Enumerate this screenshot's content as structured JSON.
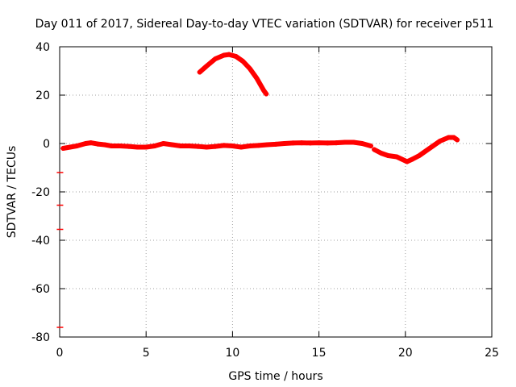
{
  "chart_data": {
    "type": "scatter",
    "title": "Day 011 of 2017, Sidereal Day-to-day VTEC variation (SDTVAR) for receiver p511",
    "xlabel": "GPS time / hours",
    "ylabel": "SDTVAR / TECUs",
    "xlim": [
      0,
      25
    ],
    "ylim": [
      -80,
      40
    ],
    "x_ticks": [
      0,
      5,
      10,
      15,
      20,
      25
    ],
    "y_ticks": [
      -80,
      -60,
      -40,
      -20,
      0,
      20,
      40
    ],
    "grid": true,
    "legend": "none",
    "series": [
      {
        "name": "SDTVAR arc 1",
        "color": "#ff0000",
        "points": [
          [
            0.2,
            -2
          ],
          [
            0.6,
            -1.5
          ],
          [
            1.0,
            -1
          ],
          [
            1.5,
            0
          ],
          [
            1.8,
            0.3
          ],
          [
            2.2,
            -0.2
          ],
          [
            2.6,
            -0.5
          ],
          [
            3.0,
            -1
          ],
          [
            3.5,
            -1
          ],
          [
            4.0,
            -1.2
          ],
          [
            4.5,
            -1.5
          ],
          [
            5.0,
            -1.5
          ],
          [
            5.5,
            -1
          ],
          [
            6.0,
            0
          ],
          [
            6.5,
            -0.5
          ],
          [
            7.0,
            -1
          ],
          [
            7.5,
            -1
          ],
          [
            8.0,
            -1.2
          ],
          [
            8.5,
            -1.5
          ],
          [
            9.0,
            -1.2
          ],
          [
            9.5,
            -0.8
          ],
          [
            10.0,
            -1
          ],
          [
            10.5,
            -1.5
          ],
          [
            11.0,
            -1
          ],
          [
            11.5,
            -0.8
          ],
          [
            12.0,
            -0.5
          ],
          [
            12.5,
            -0.3
          ],
          [
            13.0,
            0
          ],
          [
            13.5,
            0.2
          ],
          [
            14.0,
            0.3
          ],
          [
            14.5,
            0.2
          ],
          [
            15.0,
            0.3
          ],
          [
            15.5,
            0.2
          ],
          [
            16.0,
            0.3
          ],
          [
            16.5,
            0.5
          ],
          [
            17.0,
            0.5
          ],
          [
            17.5,
            0
          ],
          [
            18.0,
            -1
          ]
        ]
      },
      {
        "name": "SDTVAR arc 2",
        "color": "#ff0000",
        "points": [
          [
            8.1,
            29.5
          ],
          [
            8.5,
            32
          ],
          [
            9.0,
            35
          ],
          [
            9.5,
            36.5
          ],
          [
            9.8,
            36.8
          ],
          [
            10.2,
            36
          ],
          [
            10.6,
            34
          ],
          [
            11.0,
            31
          ],
          [
            11.4,
            27
          ],
          [
            11.8,
            22
          ],
          [
            11.95,
            20.5
          ]
        ]
      },
      {
        "name": "SDTVAR arc 3",
        "color": "#ff0000",
        "points": [
          [
            18.2,
            -2.5
          ],
          [
            18.6,
            -4
          ],
          [
            19.0,
            -5
          ],
          [
            19.5,
            -5.5
          ],
          [
            19.8,
            -6.5
          ],
          [
            20.1,
            -7.5
          ],
          [
            20.4,
            -6.5
          ],
          [
            20.8,
            -5
          ],
          [
            21.2,
            -3
          ],
          [
            21.6,
            -1
          ],
          [
            22.0,
            1
          ],
          [
            22.5,
            2.5
          ],
          [
            22.8,
            2.5
          ],
          [
            23.0,
            1.5
          ]
        ]
      },
      {
        "name": "outliers",
        "color": "#ff0000",
        "points": [
          [
            0.02,
            -12
          ],
          [
            0.02,
            -25.5
          ],
          [
            0.02,
            -35.5
          ],
          [
            0.02,
            -76
          ]
        ]
      }
    ]
  }
}
